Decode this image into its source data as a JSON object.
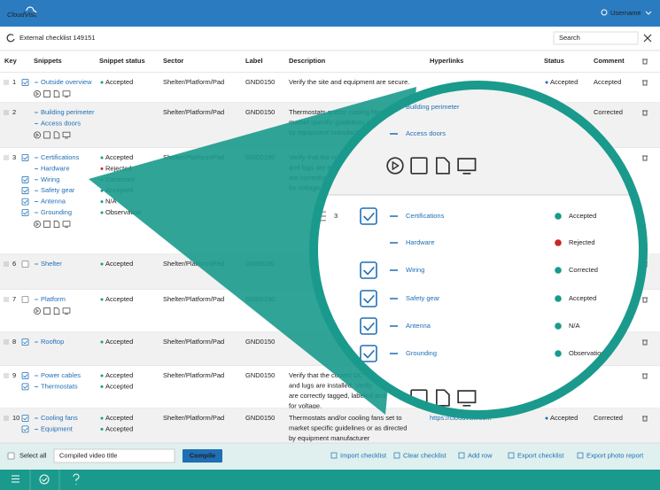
{
  "header": {
    "logo": "CloudVisit",
    "user": "Username",
    "title": "External checklist 149151",
    "search": "Search"
  },
  "table": {
    "columns": [
      "Key",
      "Snippets",
      "Snippet status",
      "Sector",
      "Label",
      "Description",
      "Hyperlinks",
      "Status",
      "Comment"
    ],
    "rows": [
      {
        "key": "1",
        "snippets": [
          {
            "name": "Outside overview",
            "checked": true,
            "status": "Accepted",
            "dot": "#1a9a8c"
          }
        ],
        "media": true,
        "sector": "Shelter/Platform/Pad",
        "label": "GND0150",
        "description": [
          "Verify the site and equipment are secure."
        ],
        "status": "Accepted",
        "comment": "Accepted"
      },
      {
        "key": "2",
        "snippets": [
          {
            "name": "Building perimeter",
            "checked": null
          },
          {
            "name": "Access doors",
            "checked": null
          }
        ],
        "media": true,
        "sector": "Shelter/Platform/Pad",
        "label": "GND0150",
        "description": [
          "Thermostats and/or cooling fans set to",
          "market specific guidelines or as directed",
          "by equipment manufacturer"
        ],
        "comment": "Corrected"
      },
      {
        "key": "3",
        "snippets": [
          {
            "name": "Certifications",
            "checked": true,
            "status": "Accepted",
            "dot": "#1a9a8c"
          },
          {
            "name": "Hardware",
            "checked": null,
            "status": "Rejected",
            "dot": "#c62828"
          },
          {
            "name": "Wiring",
            "checked": true,
            "status": "Corrected",
            "dot": "#1a9a8c"
          },
          {
            "name": "Safety gear",
            "checked": true,
            "status": "Accepted",
            "dot": "#1a9a8c"
          },
          {
            "name": "Antenna",
            "checked": true,
            "status": "N/A",
            "dot": "#1a9a8c"
          },
          {
            "name": "Grounding",
            "checked": true,
            "status": "Observation",
            "dot": "#1a9a8c"
          }
        ],
        "media": true,
        "sector": "Shelter/Platform/Pad",
        "label": "GND0150",
        "description": [
          "Verify that the correct DC",
          "and lugs are installed. Verify",
          "are correctly tagged, labeled and",
          "for voltage."
        ]
      },
      {
        "key": "6",
        "snippets": [
          {
            "name": "Shelter",
            "checked": false,
            "status": "Accepted",
            "dot": "#1a9a8c"
          }
        ],
        "media": false,
        "sector": "Shelter/Platform/Pad",
        "label": "GND0150"
      },
      {
        "key": "7",
        "snippets": [
          {
            "name": "Platform",
            "checked": false,
            "status": "Accepted",
            "dot": "#1a9a8c"
          }
        ],
        "media": true,
        "sector": "Shelter/Platform/Pad",
        "label": "GND0150"
      },
      {
        "key": "8",
        "snippets": [
          {
            "name": "Rooftop",
            "checked": true,
            "status": "Accepted",
            "dot": "#1a9a8c"
          }
        ],
        "media": false,
        "sector": "Shelter/Platform/Pad",
        "label": "GND0150"
      },
      {
        "key": "9",
        "snippets": [
          {
            "name": "Power cables",
            "checked": true,
            "status": "Accepted",
            "dot": "#1a9a8c"
          },
          {
            "name": "Thermostats",
            "checked": true,
            "status": "Accepted",
            "dot": "#1a9a8c"
          }
        ],
        "media": false,
        "sector": "Shelter/Platform/Pad",
        "label": "GND0150",
        "description": [
          "Verify that the correct DC",
          "and lugs are installed. Verify",
          "are correctly tagged, labeled and",
          "for voltage."
        ]
      },
      {
        "key": "10",
        "snippets": [
          {
            "name": "Cooling fans",
            "checked": true,
            "status": "Accepted",
            "dot": "#1a9a8c"
          },
          {
            "name": "Equipment",
            "checked": true,
            "status": "Accepted",
            "dot": "#1a9a8c"
          }
        ],
        "media": false,
        "sector": "Shelter/Platform/Pad",
        "label": "GND0150",
        "description": [
          "Thermostats and/or cooling fans set to",
          "market specific guidelines or as directed",
          "by equipment manufacturer"
        ],
        "hyperlink": "https://cloudvisit.com",
        "status": "Accepted",
        "comment": "Corrected"
      }
    ]
  },
  "footer": {
    "select_all": "Select all",
    "video_title": "Compiled video title",
    "compile": "Compile",
    "actions": [
      "Import checklist",
      "Clear checklist",
      "Add row",
      "Export checklist",
      "Export photo report"
    ]
  }
}
